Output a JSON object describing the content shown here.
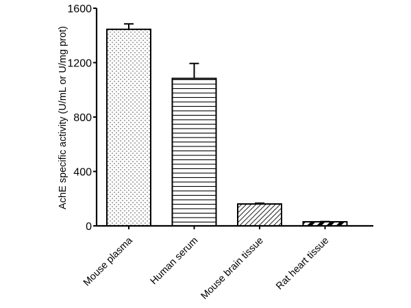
{
  "chart_data": {
    "type": "bar",
    "title": "",
    "xlabel": "",
    "ylabel": "AchE specific activity (U/mL or U/mg prot)",
    "ylim": [
      0,
      1600
    ],
    "yticks": [
      0,
      400,
      800,
      1200,
      1600
    ],
    "grid": false,
    "legend": null,
    "categories": [
      "Mouse plasma",
      "Human serum",
      "Mouse brain tissue",
      "Rat heart tissue"
    ],
    "values": [
      1445,
      1084,
      161,
      30
    ],
    "error_bars": [
      40,
      110,
      6,
      2
    ],
    "fill_patterns": [
      "dots",
      "horizontal-lines",
      "diagonal-hatch",
      "thick-diagonal-stripes"
    ]
  },
  "axis": {
    "y_ticks": [
      "0",
      "400",
      "800",
      "1200",
      "1600"
    ],
    "y_title": "AchE specific activity (U/mL or U/mg prot)",
    "x_labels": [
      "Mouse plasma",
      "Human serum",
      "Mouse brain tissue",
      "Rat heart tissue"
    ]
  }
}
